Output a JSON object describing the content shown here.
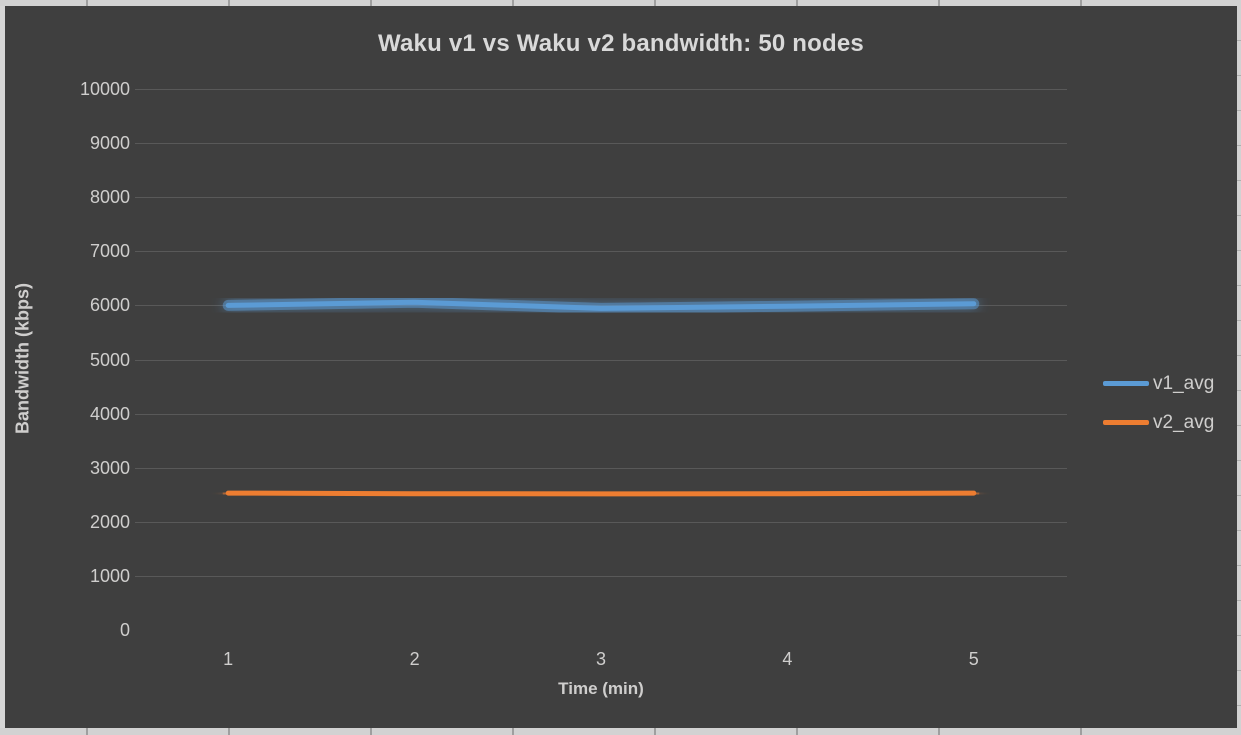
{
  "window": {
    "sheet_bg": "#d6d6d6",
    "sheet_separator": "#9f9f9f"
  },
  "chart": {
    "bg": "#3f3f3f",
    "gridline_color": "#595959",
    "label_color": "#cfcecd",
    "title_color": "#d9d9d9"
  },
  "chart_data": {
    "type": "line",
    "title": "Waku v1 vs Waku v2 bandwidth: 50 nodes",
    "xlabel": "Time (min)",
    "ylabel": "Bandwidth (kbps)",
    "x": [
      1,
      2,
      3,
      4,
      5
    ],
    "series": [
      {
        "name": "v1_avg",
        "color": "#5b9bd5",
        "values": [
          6000,
          6060,
          5945,
          5985,
          6030
        ]
      },
      {
        "name": "v2_avg",
        "color": "#ed7d31",
        "values": [
          2530,
          2520,
          2515,
          2520,
          2530
        ]
      }
    ],
    "ylim": [
      0,
      10000
    ],
    "ytick_interval": 1000,
    "grid": "horizontal-only",
    "axis_line_at_zero": false,
    "legend_position": "right",
    "line_effect": "glow"
  }
}
